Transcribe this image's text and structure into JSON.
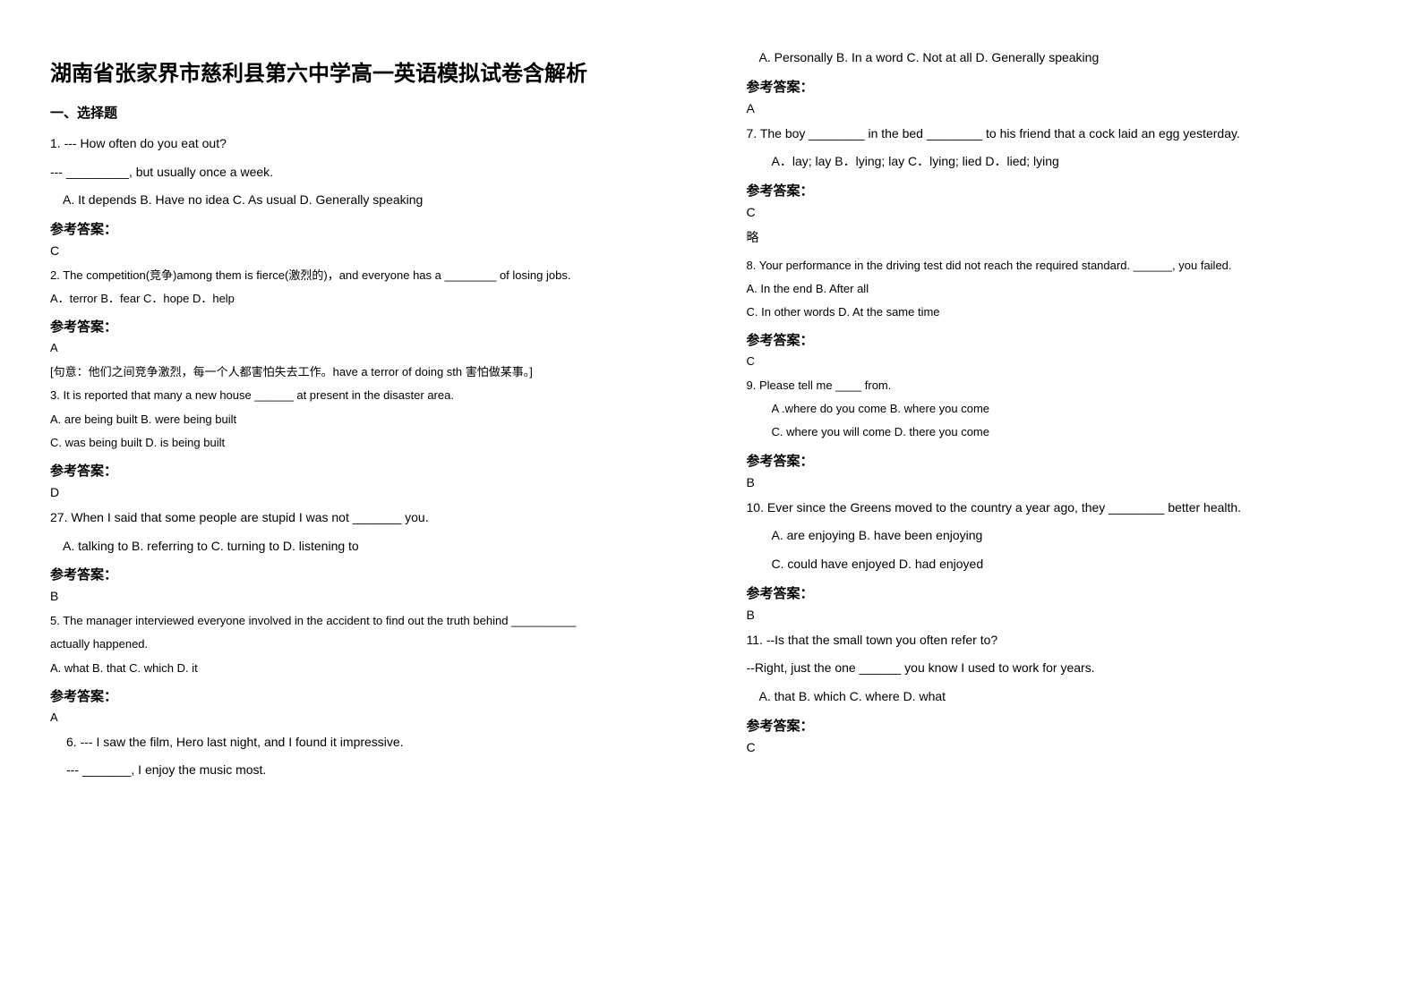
{
  "title": "湖南省张家界市慈利县第六中学高一英语模拟试卷含解析",
  "sectionHead": "一、选择题",
  "ansLabel": "参考答案：",
  "left": {
    "q1": {
      "l1": "1.  --- How often do you eat out?",
      "l2": "--- _________, but usually once a week.",
      "opts": "A. It depends       B. Have no idea        C. As usual         D. Generally speaking",
      "ans": "C"
    },
    "q2": {
      "l1": "2. The competition(竞争)among them is fierce(激烈的)，and everyone has a ________ of losing jobs.",
      "opts": "A．terror        B．fear          C．hope          D．help",
      "ans": "A",
      "note": "[句意：他们之间竞争激烈，每一个人都害怕失去工作。have a terror of doing sth 害怕做某事。]"
    },
    "q3": {
      "l1": "3. It is reported that many a new house ______ at present in the disaster area.",
      "o1": "A. are being built   B. were being built",
      "o2": "C. was being built  D. is being built",
      "ans": "D"
    },
    "q4": {
      "l1": "27. When I said that some people are stupid I was not _______ you.",
      "opts": "A. talking to     B. referring to     C. turning to       D. listening to",
      "ans": "B"
    },
    "q5": {
      "l1": "5. The manager interviewed everyone involved in the accident to find out the truth behind __________",
      "l2": "actually happened.",
      "opts": "A. what    B. that   C. which    D. it",
      "ans": "A"
    },
    "q6": {
      "l1": "6. --- I saw the film, Hero last night, and I found it impressive.",
      "l2": "--- _______, I enjoy the music most."
    }
  },
  "right": {
    "q6opts": "A. Personally   B. In a word    C. Not at all   D. Generally speaking",
    "q6ans": "A",
    "q7": {
      "l1": "7. The boy ________  in the bed ________  to his friend that a cock laid an egg yesterday.",
      "opts": "A．lay; lay       B．lying; lay      C．lying; lied       D．lied; lying",
      "ans": "C",
      "note": "略"
    },
    "q8": {
      "l1": "8. Your performance in the driving test did not reach the required standard. ______, you failed.",
      "o1": "A. In the end   B. After all",
      "o2": "C. In other words    D. At the same time",
      "ans": "C"
    },
    "q9": {
      "l1": "9. Please tell me ____ from.",
      "o1": "A .where do you come          B. where you come",
      "o2": "C. where you will come          D. there you come",
      "ans": "B"
    },
    "q10": {
      "l1": "10. Ever since the Greens moved to the country a year ago, they ________ better health.",
      "o1": "A. are enjoying                              B. have been enjoying",
      "o2": "C. could have enjoyed                     D. had enjoyed",
      "ans": "B"
    },
    "q11": {
      "l1": "11. --Is that the small town you often refer to?",
      "l2": "--Right, just the one ______ you know I used to work for years.",
      "opts": "A. that           B. which          C. where          D. what",
      "ans": "C"
    }
  }
}
